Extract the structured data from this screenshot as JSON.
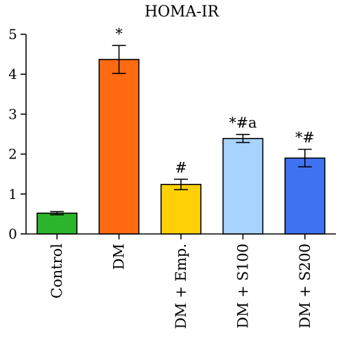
{
  "chart_data": {
    "type": "bar",
    "title": "HOMA-IR",
    "xlabel": "",
    "ylabel": "",
    "ylim": [
      0,
      5
    ],
    "yticks": [
      0,
      1,
      2,
      3,
      4,
      5
    ],
    "categories": [
      "Control",
      "DM",
      "DM + Emp.",
      "DM + S100",
      "DM + S200"
    ],
    "values": [
      0.52,
      4.37,
      1.24,
      2.39,
      1.9
    ],
    "errors": [
      0.04,
      0.35,
      0.13,
      0.1,
      0.22
    ],
    "annotations": [
      "",
      "*",
      "#",
      "*#a",
      "*#"
    ],
    "colors": [
      "#2cb52c",
      "#ff6a13",
      "#ffd006",
      "#a8d2ff",
      "#3f72f0"
    ],
    "grid": false
  }
}
